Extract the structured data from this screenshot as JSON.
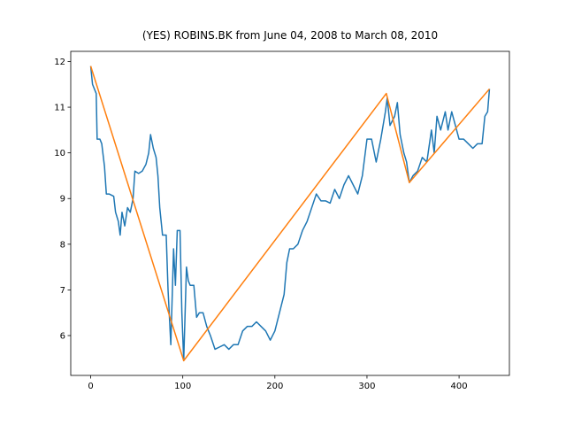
{
  "chart_data": {
    "type": "line",
    "title": "(YES) ROBINS.BK from June 04, 2008 to March 08, 2010",
    "xlim": [
      -21.65,
      454.65
    ],
    "xticks": [
      0,
      100,
      200,
      300,
      400
    ],
    "ylim": [
      5.1275,
      12.2225
    ],
    "yticks": [
      6,
      7,
      8,
      9,
      10,
      11,
      12
    ],
    "series": [
      {
        "color": "#1f77b4",
        "x": [
          0,
          2,
          4,
          6,
          7,
          10,
          12,
          15,
          17,
          20,
          25,
          27,
          30,
          32,
          34,
          37,
          40,
          43,
          46,
          48,
          52,
          56,
          60,
          63,
          65,
          68,
          71,
          73,
          75,
          78,
          82,
          84,
          87,
          90,
          92,
          94,
          97,
          99,
          101,
          104,
          106,
          108,
          112,
          115,
          118,
          122,
          126,
          130,
          135,
          140,
          145,
          150,
          155,
          160,
          165,
          170,
          175,
          180,
          185,
          190,
          195,
          200,
          205,
          210,
          213,
          216,
          220,
          225,
          230,
          235,
          240,
          245,
          250,
          255,
          260,
          265,
          270,
          275,
          280,
          285,
          290,
          295,
          300,
          305,
          310,
          315,
          320,
          322,
          325,
          330,
          333,
          336,
          340,
          343,
          346,
          350,
          355,
          360,
          365,
          370,
          373,
          376,
          380,
          385,
          388,
          392,
          396,
          400,
          405,
          410,
          415,
          420,
          425,
          428,
          431,
          433
        ],
        "values": [
          11.9,
          11.5,
          11.4,
          11.3,
          10.3,
          10.3,
          10.2,
          9.7,
          9.1,
          9.1,
          9.05,
          8.7,
          8.5,
          8.2,
          8.7,
          8.4,
          8.8,
          8.7,
          9.0,
          9.6,
          9.55,
          9.6,
          9.75,
          10.0,
          10.4,
          10.1,
          9.9,
          9.5,
          8.8,
          8.2,
          8.2,
          7.0,
          5.8,
          7.9,
          7.1,
          8.3,
          8.3,
          6.5,
          5.45,
          7.5,
          7.2,
          7.1,
          7.1,
          6.4,
          6.5,
          6.5,
          6.2,
          6.0,
          5.7,
          5.75,
          5.8,
          5.7,
          5.8,
          5.8,
          6.1,
          6.2,
          6.2,
          6.3,
          6.2,
          6.1,
          5.9,
          6.1,
          6.5,
          6.9,
          7.6,
          7.9,
          7.9,
          8.0,
          8.3,
          8.5,
          8.8,
          9.1,
          8.95,
          8.95,
          8.9,
          9.2,
          9.0,
          9.3,
          9.5,
          9.3,
          9.1,
          9.5,
          10.3,
          10.3,
          9.8,
          10.3,
          10.9,
          11.2,
          10.6,
          10.8,
          11.1,
          10.4,
          10.0,
          9.8,
          9.35,
          9.5,
          9.6,
          9.9,
          9.8,
          10.5,
          10.0,
          10.8,
          10.5,
          10.9,
          10.5,
          10.9,
          10.6,
          10.3,
          10.3,
          10.2,
          10.1,
          10.2,
          10.2,
          10.8,
          10.9,
          11.4
        ]
      },
      {
        "color": "#ff7f0e",
        "x": [
          0,
          101,
          321,
          346,
          433
        ],
        "values": [
          11.9,
          5.45,
          11.3,
          9.35,
          11.4
        ]
      }
    ]
  }
}
